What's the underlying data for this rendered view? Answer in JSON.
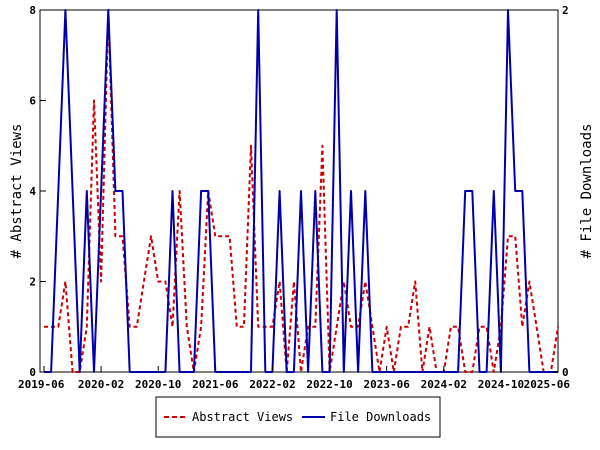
{
  "chart_data": {
    "type": "line",
    "ylabel": "# Abstract Views",
    "y2label": "# File Downloads",
    "ylim": [
      0,
      8
    ],
    "y2lim": [
      0,
      2
    ],
    "yticks": [
      "0",
      "2",
      "4",
      "6",
      "8"
    ],
    "y2ticks": [
      "0",
      "2"
    ],
    "xticks": [
      "2019-06",
      "2020-02",
      "2020-10",
      "2021-06",
      "2022-02",
      "2022-10",
      "2023-06",
      "2024-02",
      "2024-10",
      "2025-06"
    ],
    "grid": false,
    "legend_position": "bottom",
    "series": [
      {
        "name": "Abstract Views",
        "axis": "left",
        "color": "#cc0000",
        "style": "dashed",
        "x": [
          0,
          1,
          2,
          3,
          4,
          5,
          6,
          7,
          8,
          9,
          10,
          11,
          12,
          13,
          14,
          15,
          16,
          17,
          18,
          19,
          20,
          21,
          22,
          23,
          24,
          25,
          26,
          27,
          28,
          29,
          30,
          31,
          32,
          33,
          34,
          35,
          36,
          37,
          38,
          39,
          40,
          41,
          42,
          43,
          44,
          45,
          46,
          47,
          48,
          49,
          50,
          51,
          52,
          53,
          54,
          55,
          56,
          57,
          58,
          59,
          60,
          61,
          62,
          63,
          64,
          65,
          66,
          67,
          68,
          69,
          70,
          71,
          72
        ],
        "values": [
          1,
          1,
          1,
          2,
          0,
          0,
          1,
          6,
          2,
          8,
          3,
          3,
          1,
          1,
          2,
          3,
          2,
          2,
          1,
          4,
          1,
          0,
          1,
          4,
          3,
          3,
          3,
          1,
          1,
          5,
          1,
          1,
          1,
          2,
          0,
          2,
          0,
          1,
          1,
          5,
          0,
          1,
          2,
          1,
          1,
          2,
          1,
          0,
          1,
          0,
          1,
          1,
          2,
          0,
          1,
          0,
          0,
          1,
          1,
          0,
          0,
          1,
          1,
          0,
          1,
          3,
          3,
          1,
          2,
          1,
          0,
          0,
          1
        ]
      },
      {
        "name": "File Downloads",
        "axis": "right",
        "color": "#0000aa",
        "style": "solid",
        "x": [
          0,
          1,
          2,
          3,
          4,
          5,
          6,
          7,
          8,
          9,
          10,
          11,
          12,
          13,
          14,
          15,
          16,
          17,
          18,
          19,
          20,
          21,
          22,
          23,
          24,
          25,
          26,
          27,
          28,
          29,
          30,
          31,
          32,
          33,
          34,
          35,
          36,
          37,
          38,
          39,
          40,
          41,
          42,
          43,
          44,
          45,
          46,
          47,
          48,
          49,
          50,
          51,
          52,
          53,
          54,
          55,
          56,
          57,
          58,
          59,
          60,
          61,
          62,
          63,
          64,
          65,
          66,
          67,
          68,
          69,
          70,
          71,
          72
        ],
        "values": [
          0,
          0,
          1,
          2,
          1,
          0,
          1,
          0,
          1,
          2,
          1,
          1,
          0,
          0,
          0,
          0,
          0,
          0,
          1,
          0,
          0,
          0,
          1,
          1,
          0,
          0,
          0,
          0,
          0,
          0,
          2,
          0,
          0,
          1,
          0,
          0,
          1,
          0,
          1,
          0,
          0,
          2,
          0,
          1,
          0,
          1,
          0,
          0,
          0,
          0,
          0,
          0,
          0,
          0,
          0,
          0,
          0,
          0,
          0,
          1,
          1,
          0,
          0,
          1,
          0,
          2,
          1,
          1,
          0,
          0,
          0,
          0,
          0
        ]
      }
    ]
  }
}
